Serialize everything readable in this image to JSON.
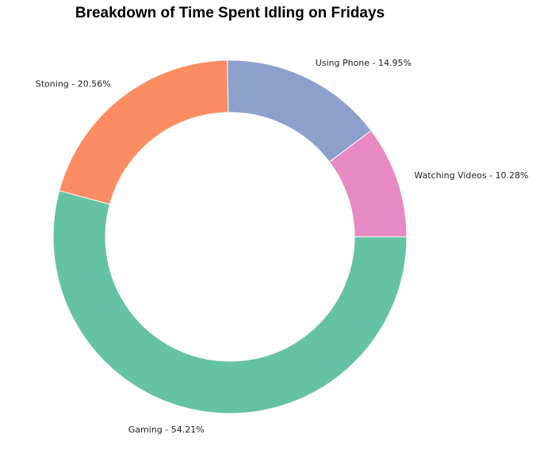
{
  "chart_data": {
    "type": "pie",
    "title": "Breakdown of Time Spent Idling on Fridays",
    "donut": true,
    "start_angle_deg": 0,
    "direction": "clockwise",
    "slices": [
      {
        "label": "Gaming",
        "value": 54.21,
        "display": "Gaming - 54.21%",
        "color": "#66c2a5"
      },
      {
        "label": "Stoning",
        "value": 20.56,
        "display": "Stoning - 20.56%",
        "color": "#fc8d62"
      },
      {
        "label": "Using Phone",
        "value": 14.95,
        "display": "Using Phone - 14.95%",
        "color": "#8da0cb"
      },
      {
        "label": "Watching Videos",
        "value": 10.28,
        "display": "Watching Videos - 10.28%",
        "color": "#e78ac3"
      }
    ]
  }
}
